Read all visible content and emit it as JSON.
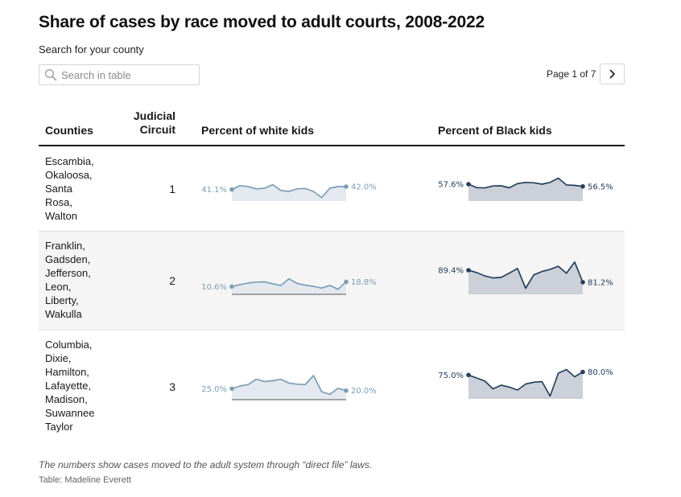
{
  "title": "Share of cases by race moved to adult courts, 2008-2022",
  "search": {
    "label": "Search for your county",
    "placeholder": "Search in table"
  },
  "pagination": {
    "text": "Page 1 of 7"
  },
  "columns": {
    "counties": "Counties",
    "circuit": "Judicial Circuit",
    "white": "Percent of white kids",
    "black": "Percent of Black kids"
  },
  "colors": {
    "white_series": "#7d9db5",
    "white_fill": "#e3e9ef",
    "black_series": "#25405c",
    "black_fill": "#ccd1d9",
    "baseline": "#555555"
  },
  "rows": [
    {
      "counties": [
        "Escambia,",
        "Okaloosa,",
        "Santa",
        "Rosa,",
        "Walton"
      ],
      "circuit": "1",
      "white": {
        "start_label": "41.1%",
        "end_label": "42.0%",
        "values": [
          41.1,
          42.3,
          42.0,
          41.3,
          41.5,
          42.6,
          40.8,
          40.5,
          41.3,
          41.4,
          40.5,
          38.6,
          41.5,
          42.0,
          42.0
        ]
      },
      "black": {
        "start_label": "57.6%",
        "end_label": "56.5%",
        "values": [
          57.6,
          55.9,
          55.7,
          56.7,
          56.8,
          55.8,
          57.9,
          58.5,
          58.3,
          57.6,
          58.5,
          60.6,
          57.2,
          57.0,
          56.5
        ]
      }
    },
    {
      "counties": [
        "Franklin,",
        "Gadsden,",
        "Jefferson,",
        "Leon,",
        "Liberty,",
        "Wakulla"
      ],
      "circuit": "2",
      "white": {
        "start_label": "10.6%",
        "end_label": "18.8%",
        "values": [
          10.6,
          14.0,
          16.8,
          18.4,
          18.8,
          15.5,
          12.5,
          24.0,
          16.0,
          13.0,
          11.0,
          8.0,
          12.6,
          6.0,
          18.8
        ]
      },
      "black": {
        "start_label": "89.4%",
        "end_label": "81.2%",
        "values": [
          89.4,
          87.8,
          85.5,
          84.1,
          84.5,
          87.4,
          90.6,
          77.0,
          86.2,
          88.5,
          90.0,
          92.1,
          87.3,
          95.0,
          81.2
        ]
      }
    },
    {
      "counties": [
        "Columbia,",
        "Dixie,",
        "Hamilton,",
        "Lafayette,",
        "Madison,",
        "Suwannee",
        "Taylor"
      ],
      "circuit": "3",
      "white": {
        "start_label": "25.0%",
        "end_label": "20.0%",
        "values": [
          25.0,
          32.0,
          36.0,
          50.0,
          44.0,
          46.0,
          50.0,
          40.0,
          37.0,
          36.0,
          60.0,
          17.0,
          10.0,
          26.0,
          20.0
        ]
      },
      "black": {
        "start_label": "75.0%",
        "end_label": "80.0%",
        "values": [
          75.0,
          70.0,
          65.0,
          52.0,
          58.0,
          55.0,
          50.0,
          60.0,
          63.0,
          64.0,
          40.0,
          78.0,
          84.0,
          72.0,
          80.0
        ]
      }
    }
  ],
  "footer": {
    "note": "The numbers show cases moved to the adult system through “direct file” laws.",
    "credit": "Table: Madeline Everett"
  }
}
